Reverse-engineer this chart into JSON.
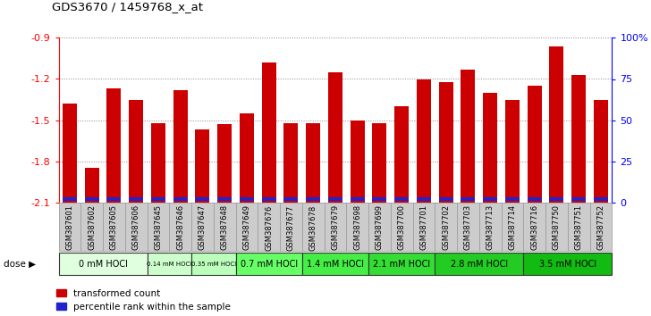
{
  "title": "GDS3670 / 1459768_x_at",
  "samples": [
    "GSM387601",
    "GSM387602",
    "GSM387605",
    "GSM387606",
    "GSM387645",
    "GSM387646",
    "GSM387647",
    "GSM387648",
    "GSM387649",
    "GSM387676",
    "GSM387677",
    "GSM387678",
    "GSM387679",
    "GSM387698",
    "GSM387699",
    "GSM387700",
    "GSM387701",
    "GSM387702",
    "GSM387703",
    "GSM387713",
    "GSM387714",
    "GSM387716",
    "GSM387750",
    "GSM387751",
    "GSM387752"
  ],
  "transformed_count": [
    -1.38,
    -1.85,
    -1.27,
    -1.35,
    -1.52,
    -1.28,
    -1.57,
    -1.53,
    -1.45,
    -1.08,
    -1.52,
    -1.52,
    -1.15,
    -1.5,
    -1.52,
    -1.4,
    -1.2,
    -1.22,
    -1.13,
    -1.3,
    -1.35,
    -1.25,
    -0.96,
    -1.17,
    -1.35
  ],
  "percentile_rank": [
    8,
    9,
    10,
    8,
    9,
    10,
    12,
    11,
    8,
    11,
    10,
    10,
    10,
    8,
    9,
    8,
    10,
    9,
    9,
    9,
    10,
    8,
    10,
    9,
    8
  ],
  "dose_groups": [
    {
      "label": "0 mM HOCl",
      "start": 0,
      "end": 4,
      "color": "#dfffdf"
    },
    {
      "label": "0.14 mM HOCl",
      "start": 4,
      "end": 6,
      "color": "#ccffcc"
    },
    {
      "label": "0.35 mM HOCl",
      "start": 6,
      "end": 8,
      "color": "#bbffbb"
    },
    {
      "label": "0.7 mM HOCl",
      "start": 8,
      "end": 11,
      "color": "#66ff66"
    },
    {
      "label": "1.4 mM HOCl",
      "start": 11,
      "end": 14,
      "color": "#44ee44"
    },
    {
      "label": "2.1 mM HOCl",
      "start": 14,
      "end": 17,
      "color": "#33dd33"
    },
    {
      "label": "2.8 mM HOCl",
      "start": 17,
      "end": 21,
      "color": "#22cc22"
    },
    {
      "label": "3.5 mM HOCl",
      "start": 21,
      "end": 25,
      "color": "#11bb11"
    }
  ],
  "ylim_left": [
    -2.1,
    -0.9
  ],
  "yticks_left": [
    -2.1,
    -1.8,
    -1.5,
    -1.2,
    -0.9
  ],
  "ylim_right": [
    0,
    100
  ],
  "yticks_right": [
    0,
    25,
    50,
    75,
    100
  ],
  "bar_color": "#cc0000",
  "blue_color": "#2222cc",
  "background_color": "#ffffff",
  "grid_color": "#888888",
  "xtick_bg": "#cccccc"
}
